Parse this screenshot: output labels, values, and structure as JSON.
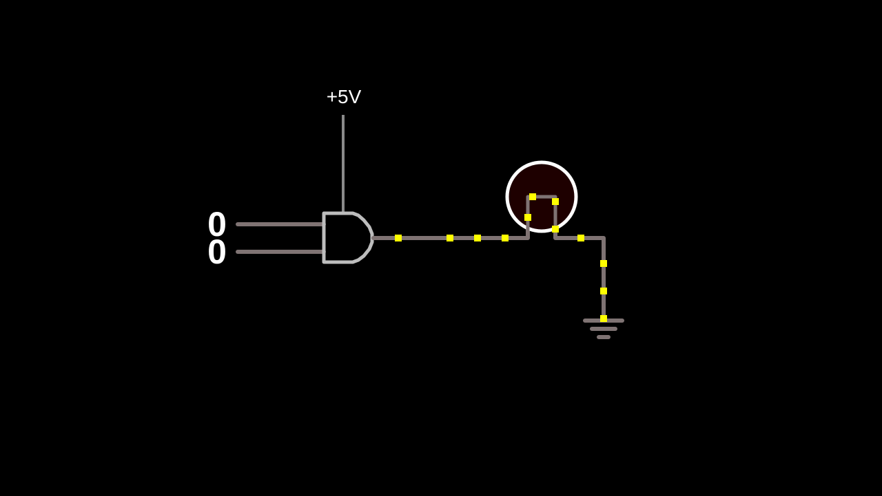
{
  "diagram": {
    "inputs": [
      {
        "name": "input-a",
        "value": "0"
      },
      {
        "name": "input-b",
        "value": "0"
      }
    ],
    "supply": {
      "label": "+5V"
    },
    "gate": {
      "type": "and-gate"
    },
    "output": {
      "type": "lamp",
      "state": "off"
    },
    "ground": {
      "type": "ground-symbol"
    },
    "colors": {
      "background": "#000000",
      "wire": "#7f7373",
      "gate_outline": "#bdbdbd",
      "supply_wire": "#8a8a8a",
      "current_marker": "#ffff00",
      "lamp_ring": "#ffffff",
      "lamp_fill": "#1e0000",
      "text": "#ffffff"
    }
  }
}
